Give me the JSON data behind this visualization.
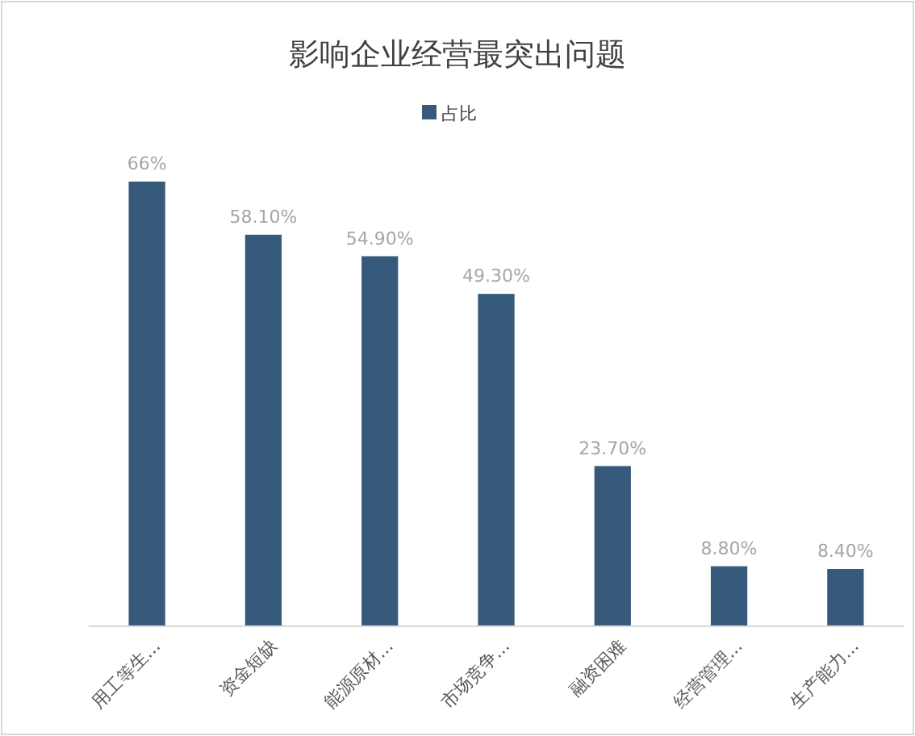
{
  "chart_data": {
    "type": "bar",
    "title": "影响企业经营最突出问题",
    "categories": [
      "用工等生...",
      "资金短缺",
      "能源原材...",
      "市场竞争...",
      "融资困难",
      "经营管理...",
      "生产能力..."
    ],
    "series": [
      {
        "name": "占比",
        "color": "#375a7c",
        "values": [
          66,
          58.1,
          54.9,
          49.3,
          23.7,
          8.8,
          8.4
        ],
        "value_labels": [
          "66%",
          "58.10%",
          "54.90%",
          "49.30%",
          "23.70%",
          "8.80%",
          "8.40%"
        ]
      }
    ],
    "legend": "top",
    "grid": false
  }
}
